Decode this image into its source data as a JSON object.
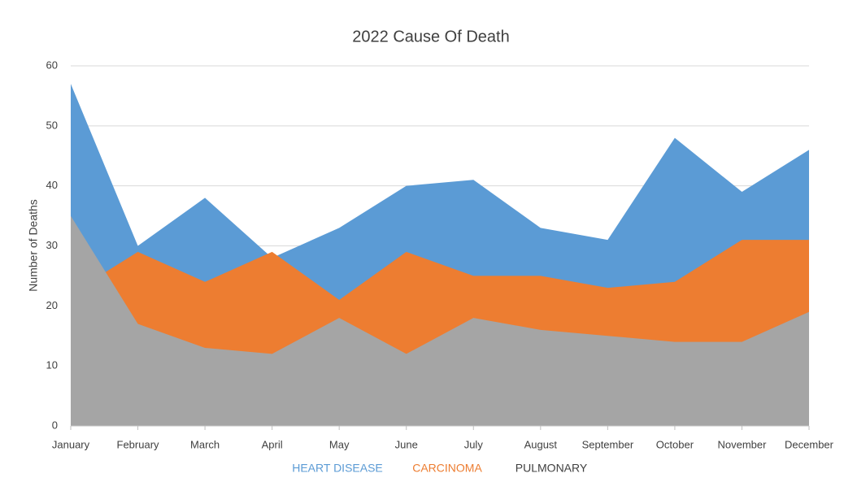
{
  "chart_data": {
    "type": "area",
    "title": "2022 Cause Of Death",
    "ylabel": "Number of Deaths",
    "categories": [
      "January",
      "February",
      "March",
      "April",
      "May",
      "June",
      "July",
      "August",
      "September",
      "October",
      "November",
      "December"
    ],
    "series": [
      {
        "name": "HEART DISEASE",
        "color": "#5b9bd5",
        "values": [
          57,
          30,
          38,
          28,
          33,
          40,
          41,
          33,
          31,
          48,
          39,
          46
        ]
      },
      {
        "name": "CARCINOMA",
        "color": "#ed7d31",
        "values": [
          22,
          29,
          24,
          29,
          21,
          29,
          25,
          25,
          23,
          24,
          31,
          31
        ]
      },
      {
        "name": "PULMONARY",
        "color": "#a5a5a5",
        "values": [
          35,
          17,
          13,
          12,
          18,
          12,
          18,
          16,
          15,
          14,
          14,
          19
        ]
      }
    ],
    "ylim": [
      0,
      60
    ],
    "yticks": [
      0,
      10,
      20,
      30,
      40,
      50,
      60
    ],
    "grid": true,
    "legend": "bottom"
  }
}
